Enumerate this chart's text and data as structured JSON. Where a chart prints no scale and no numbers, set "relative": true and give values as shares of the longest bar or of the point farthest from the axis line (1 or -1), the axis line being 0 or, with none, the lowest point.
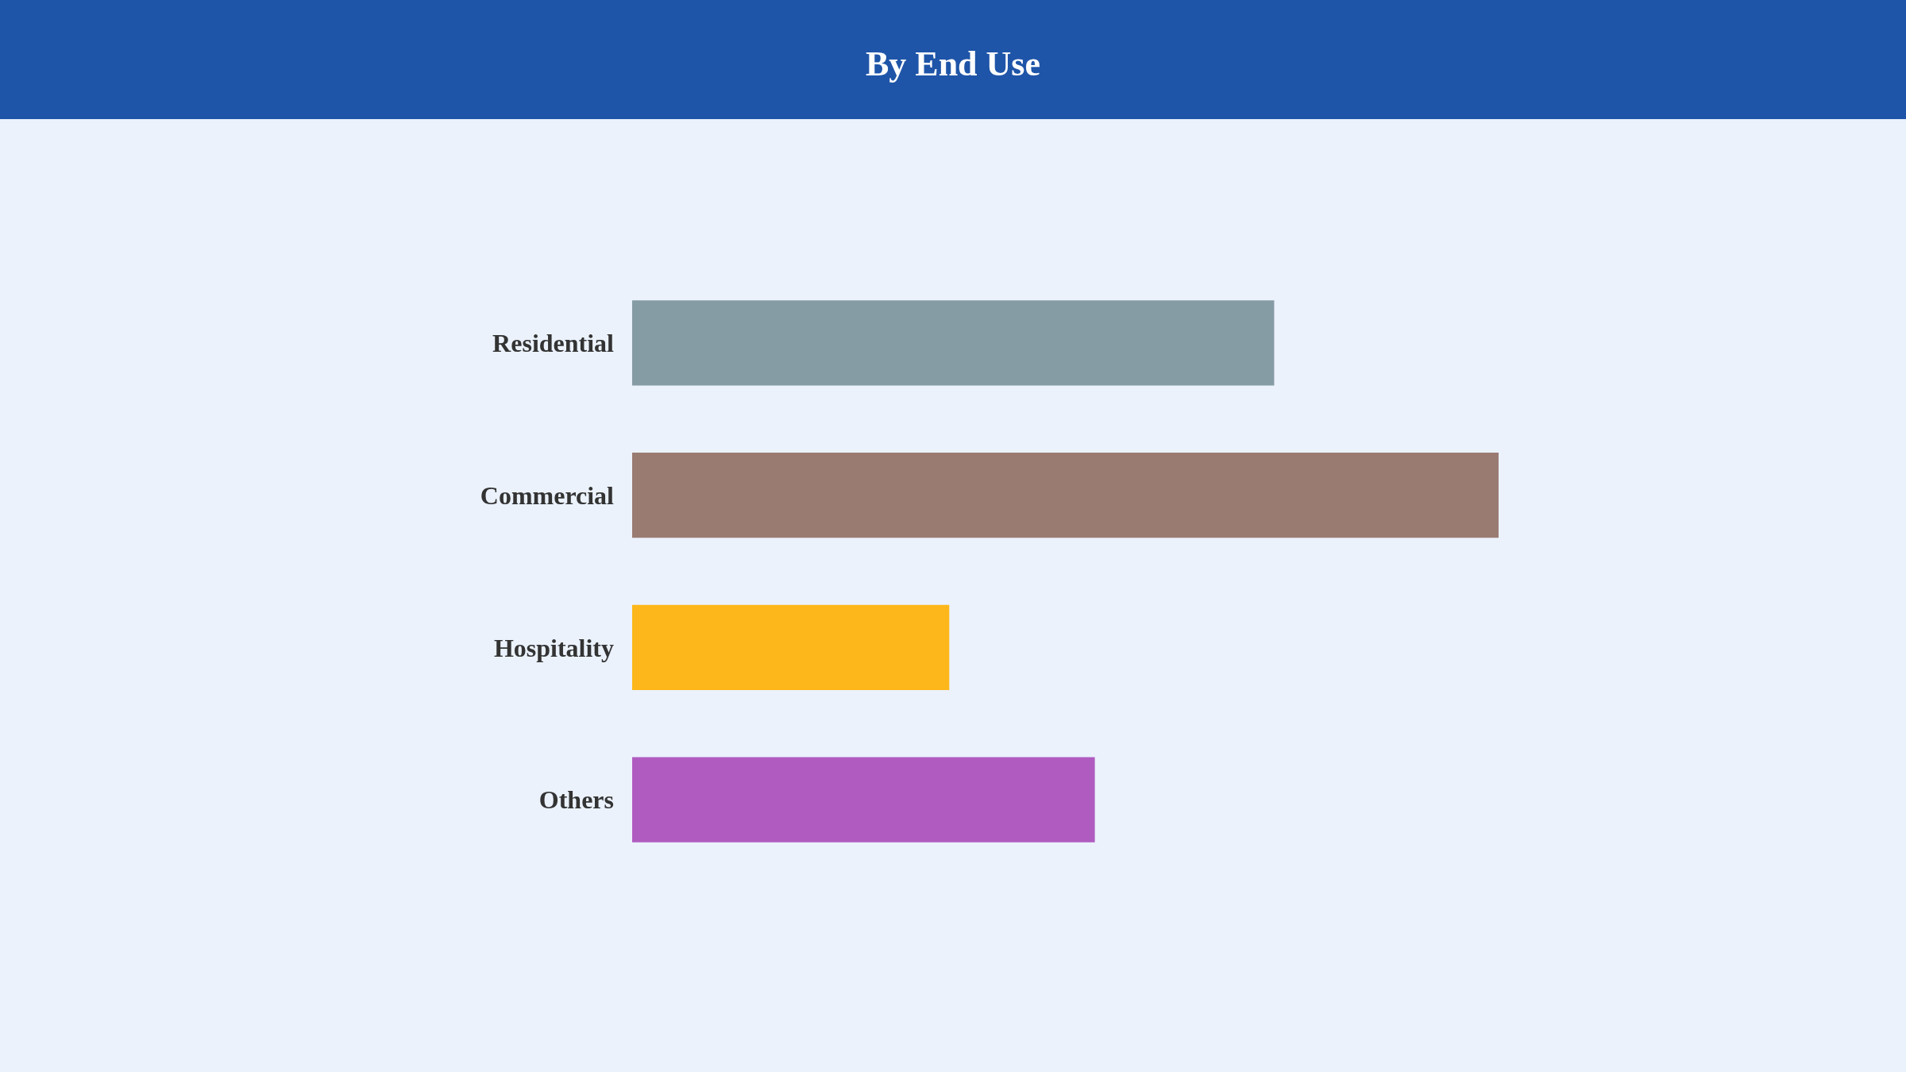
{
  "chart_data": {
    "type": "bar",
    "title": "By End Use",
    "orientation": "horizontal",
    "relative": true,
    "categories": [
      "Residential",
      "Commercial",
      "Hospitality",
      "Others"
    ],
    "values": [
      0.741,
      1,
      0.366,
      0.534
    ],
    "colors": [
      "#869ca5",
      "#9a7b72",
      "#fdb71a",
      "#b05bc0"
    ],
    "legend": false
  }
}
